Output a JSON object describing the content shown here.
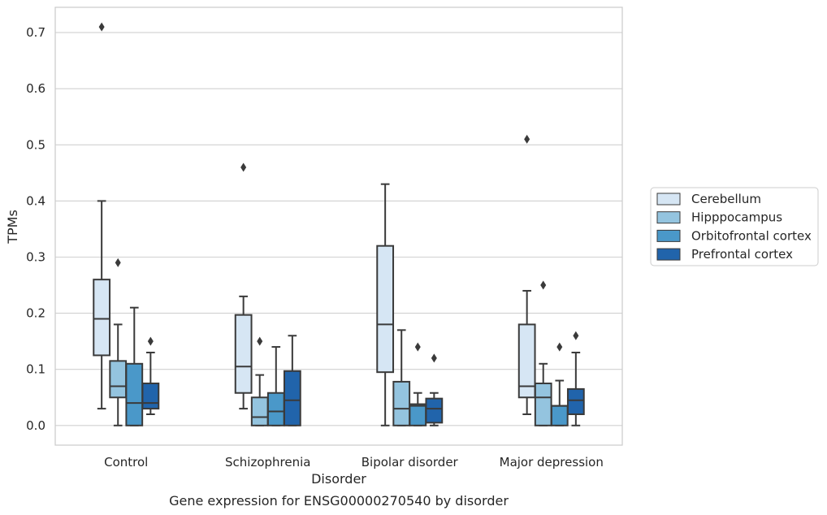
{
  "caption": "Gene expression for ENSG00000270540 by disorder",
  "colors": {
    "cerebellum": "#d6e6f4",
    "hippocampus": "#94c4df",
    "orbitofrontal": "#4a98c9",
    "prefrontal": "#2164ab",
    "edge": "#3a3a3a",
    "grid": "#d0d0d0"
  },
  "chart_data": {
    "type": "box",
    "xlabel": "Disorder",
    "ylabel": "TPMs",
    "ylim": [
      -0.035,
      0.745
    ],
    "yticks": [
      0.0,
      0.1,
      0.2,
      0.3,
      0.4,
      0.5,
      0.6,
      0.7
    ],
    "ytick_labels": [
      "0.0",
      "0.1",
      "0.2",
      "0.3",
      "0.4",
      "0.5",
      "0.6",
      "0.7"
    ],
    "grid": "horizontal",
    "legend_position": "right",
    "categories": [
      "Control",
      "Schizophrenia",
      "Bipolar disorder",
      "Major depression"
    ],
    "series": [
      {
        "name": "Cerebellum",
        "color_key": "cerebellum",
        "boxes": [
          {
            "whislo": 0.03,
            "q1": 0.125,
            "med": 0.19,
            "q3": 0.26,
            "whishi": 0.4,
            "fliers": [
              0.71
            ]
          },
          {
            "whislo": 0.03,
            "q1": 0.058,
            "med": 0.105,
            "q3": 0.197,
            "whishi": 0.23,
            "fliers": [
              0.46
            ]
          },
          {
            "whislo": 0.0,
            "q1": 0.095,
            "med": 0.18,
            "q3": 0.32,
            "whishi": 0.43,
            "fliers": []
          },
          {
            "whislo": 0.02,
            "q1": 0.05,
            "med": 0.07,
            "q3": 0.18,
            "whishi": 0.24,
            "fliers": [
              0.51
            ]
          }
        ]
      },
      {
        "name": "Hipppocampus",
        "color_key": "hippocampus",
        "boxes": [
          {
            "whislo": 0.0,
            "q1": 0.05,
            "med": 0.07,
            "q3": 0.115,
            "whishi": 0.18,
            "fliers": [
              0.29
            ]
          },
          {
            "whislo": 0.0,
            "q1": 0.0,
            "med": 0.015,
            "q3": 0.05,
            "whishi": 0.09,
            "fliers": [
              0.15
            ]
          },
          {
            "whislo": 0.0,
            "q1": 0.0,
            "med": 0.03,
            "q3": 0.078,
            "whishi": 0.17,
            "fliers": []
          },
          {
            "whislo": 0.0,
            "q1": 0.0,
            "med": 0.05,
            "q3": 0.075,
            "whishi": 0.11,
            "fliers": [
              0.25
            ]
          }
        ]
      },
      {
        "name": "Orbitofrontal cortex",
        "color_key": "orbitofrontal",
        "boxes": [
          {
            "whislo": 0.0,
            "q1": 0.0,
            "med": 0.04,
            "q3": 0.11,
            "whishi": 0.21,
            "fliers": []
          },
          {
            "whislo": 0.0,
            "q1": 0.0,
            "med": 0.025,
            "q3": 0.058,
            "whishi": 0.14,
            "fliers": []
          },
          {
            "whislo": 0.0,
            "q1": 0.0,
            "med": 0.035,
            "q3": 0.038,
            "whishi": 0.058,
            "fliers": [
              0.14
            ]
          },
          {
            "whislo": 0.0,
            "q1": 0.0,
            "med": 0.035,
            "q3": 0.035,
            "whishi": 0.08,
            "fliers": [
              0.14
            ]
          }
        ]
      },
      {
        "name": "Prefrontal cortex",
        "color_key": "prefrontal",
        "boxes": [
          {
            "whislo": 0.02,
            "q1": 0.03,
            "med": 0.04,
            "q3": 0.075,
            "whishi": 0.13,
            "fliers": [
              0.15
            ]
          },
          {
            "whislo": 0.0,
            "q1": 0.0,
            "med": 0.045,
            "q3": 0.097,
            "whishi": 0.16,
            "fliers": []
          },
          {
            "whislo": 0.0,
            "q1": 0.005,
            "med": 0.03,
            "q3": 0.048,
            "whishi": 0.058,
            "fliers": [
              0.12
            ]
          },
          {
            "whislo": 0.0,
            "q1": 0.02,
            "med": 0.045,
            "q3": 0.065,
            "whishi": 0.13,
            "fliers": [
              0.16
            ]
          }
        ]
      }
    ]
  }
}
